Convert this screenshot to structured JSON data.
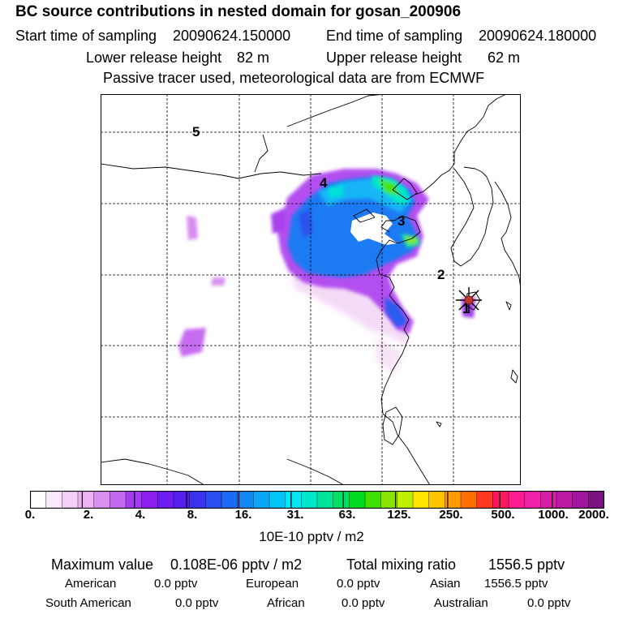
{
  "header": {
    "title": "BC  source contributions in nested domain for gosan_200906",
    "start_label": "Start time of sampling",
    "start_value": "20090624.150000",
    "end_label": "End time of sampling",
    "end_value": "20090624.180000",
    "lower_label": "Lower release height",
    "lower_value": "82 m",
    "upper_label": "Upper release height",
    "upper_value": "62 m",
    "note": "Passive tracer used, meteorological data are from ECMWF"
  },
  "map": {
    "point_labels": [
      "1",
      "2",
      "3",
      "4",
      "5"
    ],
    "receptor_color": "#c0392b"
  },
  "colorbar": {
    "ticks": [
      "0.",
      "2.",
      "4.",
      "8.",
      "16.",
      "31.",
      "63.",
      "125.",
      "250.",
      "500.",
      "1000.",
      "2000."
    ],
    "colors": [
      "#ffffff",
      "#fbe8fb",
      "#f5cff7",
      "#eeb4f2",
      "#d98ff0",
      "#c46af0",
      "#a63cf0",
      "#8c1fef",
      "#6e1cef",
      "#5520ee",
      "#3a33ec",
      "#2a4ef0",
      "#1d6af3",
      "#1388f5",
      "#0ca6f7",
      "#05c4f8",
      "#00e8f5",
      "#00e6c8",
      "#00e497",
      "#00e066",
      "#00dc22",
      "#40e000",
      "#8ae400",
      "#bff000",
      "#ffe600",
      "#ffc600",
      "#ff9b00",
      "#ff6f00",
      "#ff3a20",
      "#ff1860",
      "#ff1b94",
      "#f020a8",
      "#d71ca6",
      "#bd1aa3",
      "#a0169c",
      "#7a1480"
    ],
    "units": "10E-10 pptv / m2"
  },
  "stats": {
    "max_label": "Maximum value",
    "max_value": "0.108E-06 pptv / m2",
    "total_label": "Total mixing ratio",
    "total_value": "1556.5 pptv",
    "regions": [
      {
        "name": "American",
        "value": "0.0 pptv"
      },
      {
        "name": "European",
        "value": "0.0 pptv"
      },
      {
        "name": "Asian",
        "value": "1556.5 pptv"
      },
      {
        "name": "South American",
        "value": "0.0 pptv"
      },
      {
        "name": "African",
        "value": "0.0 pptv"
      },
      {
        "name": "Australian",
        "value": "0.0 pptv"
      }
    ]
  }
}
